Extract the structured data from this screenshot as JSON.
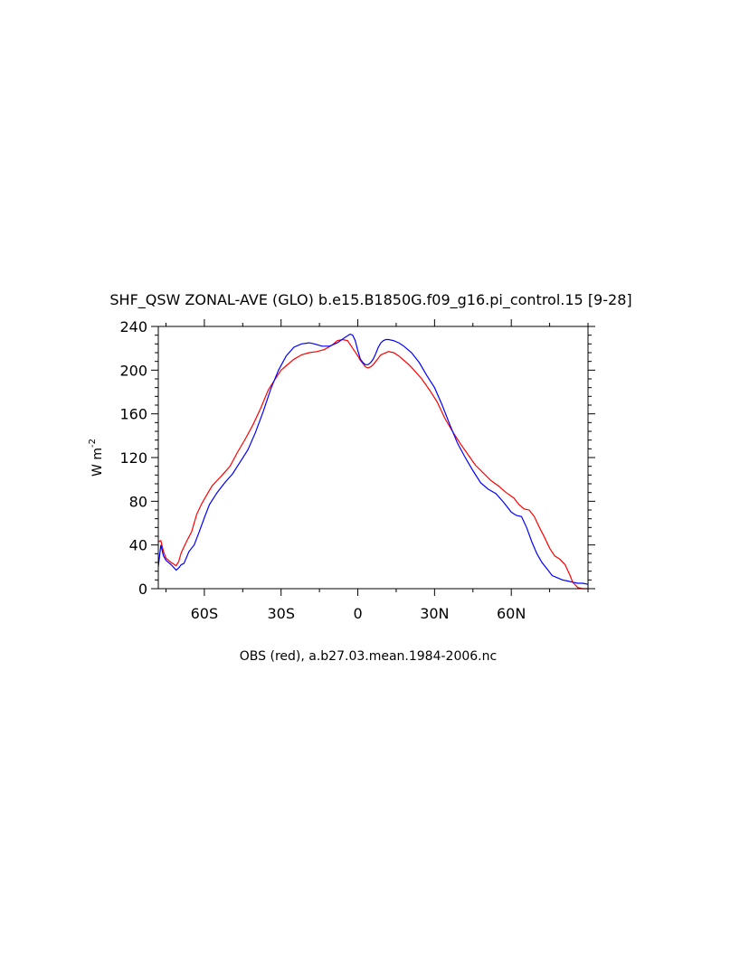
{
  "chart_data": {
    "type": "line",
    "title": "SHF_QSW ZONAL-AVE (GLO) b.e15.B1850G.f09_g16.pi_control.15 [9-28]",
    "ylabel": "W m",
    "ylabel_sup": "-2",
    "caption": "OBS (red), a.b27.03.mean.1984-2006.nc",
    "xlim": [
      -78,
      90
    ],
    "ylim": [
      0,
      240
    ],
    "x_ticks": [
      -60,
      -30,
      0,
      30,
      60
    ],
    "x_tick_labels": [
      "60S",
      "30S",
      "0",
      "30N",
      "60N"
    ],
    "y_ticks": [
      0,
      40,
      80,
      120,
      160,
      200,
      240
    ],
    "y_tick_labels": [
      "0",
      "40",
      "80",
      "120",
      "160",
      "200",
      "240"
    ],
    "grid": false,
    "series": [
      {
        "color": "#ff0000",
        "x": [
          -78,
          -77,
          -76,
          -75,
          -73,
          -71,
          -70,
          -69,
          -67,
          -65,
          -63,
          -61,
          -59,
          -57,
          -55,
          -53,
          -50,
          -47,
          -44,
          -41,
          -38,
          -35,
          -32,
          -30,
          -28,
          -25,
          -22,
          -19,
          -16,
          -13,
          -10,
          -8,
          -6,
          -4,
          -2,
          0,
          1,
          2,
          3,
          4,
          5,
          6,
          7,
          8,
          9,
          10,
          12,
          14,
          16,
          18,
          20,
          22,
          25,
          28,
          31,
          34,
          37,
          40,
          43,
          46,
          49,
          52,
          55,
          58,
          61,
          63,
          65,
          67,
          69,
          71,
          73,
          75,
          77,
          79,
          81,
          83,
          84,
          86,
          88,
          90
        ],
        "y": [
          43,
          44,
          34,
          28,
          24,
          21,
          25,
          33,
          43,
          52,
          68,
          78,
          86,
          94,
          99,
          104,
          112,
          125,
          137,
          150,
          165,
          182,
          193,
          200,
          204,
          210,
          214,
          216,
          217,
          219,
          223,
          227,
          228,
          227,
          220,
          213,
          209,
          206,
          203,
          202,
          203,
          205,
          208,
          211,
          214,
          215,
          217,
          216,
          213,
          209,
          205,
          200,
          192,
          182,
          171,
          156,
          144,
          133,
          123,
          113,
          106,
          99,
          94,
          88,
          83,
          77,
          73,
          72,
          66,
          56,
          47,
          37,
          30,
          27,
          22,
          12,
          6,
          1,
          0,
          0
        ]
      },
      {
        "color": "#0000ff",
        "x": [
          -78,
          -77,
          -76,
          -75,
          -73,
          -71,
          -70,
          -69,
          -68,
          -66,
          -64,
          -62,
          -60,
          -58,
          -55,
          -52,
          -49,
          -46,
          -43,
          -40,
          -37,
          -34,
          -31,
          -28,
          -25,
          -22,
          -19,
          -17,
          -14,
          -11,
          -8,
          -5,
          -3,
          -2,
          -1,
          0,
          1,
          2,
          3,
          4,
          5,
          6,
          7,
          8,
          9,
          10,
          11,
          12,
          14,
          16,
          18,
          21,
          24,
          27,
          30,
          33,
          36,
          39,
          42,
          45,
          48,
          51,
          54,
          57,
          60,
          62,
          64,
          66,
          68,
          70,
          72,
          74,
          76,
          78,
          80,
          82,
          84,
          86,
          88,
          90
        ],
        "y": [
          20,
          40,
          30,
          26,
          22,
          17,
          19,
          22,
          23,
          34,
          40,
          52,
          65,
          77,
          88,
          97,
          105,
          116,
          127,
          143,
          162,
          183,
          200,
          213,
          221,
          224,
          225,
          224,
          222,
          222,
          225,
          230,
          233,
          232,
          227,
          218,
          210,
          207,
          205,
          205,
          207,
          210,
          215,
          221,
          225,
          227,
          228,
          228,
          227,
          225,
          222,
          216,
          207,
          195,
          184,
          168,
          150,
          133,
          120,
          108,
          97,
          91,
          87,
          79,
          70,
          67,
          66,
          56,
          43,
          32,
          24,
          18,
          12,
          10,
          8,
          7,
          6,
          5,
          5,
          4
        ]
      }
    ]
  }
}
